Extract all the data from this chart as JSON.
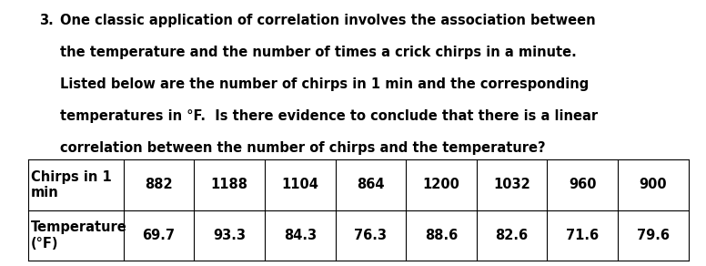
{
  "paragraph_number": "3.",
  "paragraph_text": [
    "One classic application of correlation involves the association between",
    "the temperature and the number of times a crick chirps in a minute.",
    "Listed below are the number of chirps in 1 min and the corresponding",
    "temperatures in °F.  Is there evidence to conclude that there is a linear",
    "correlation between the number of chirps and the temperature?"
  ],
  "table": {
    "row1_label": "Chirps in 1\nmin",
    "row2_label": "Temperature\n(°F)",
    "chirps": [
      "882",
      "1188",
      "1104",
      "864",
      "1200",
      "1032",
      "960",
      "900"
    ],
    "temperatures": [
      "69.7",
      "93.3",
      "84.3",
      "76.3",
      "88.6",
      "82.6",
      "71.6",
      "79.6"
    ]
  },
  "font_family": "DejaVu Sans",
  "font_size_text": 10.5,
  "font_size_table": 10.5,
  "bg_color": "#ffffff",
  "text_color": "#000000",
  "fig_width": 7.76,
  "fig_height": 2.92
}
